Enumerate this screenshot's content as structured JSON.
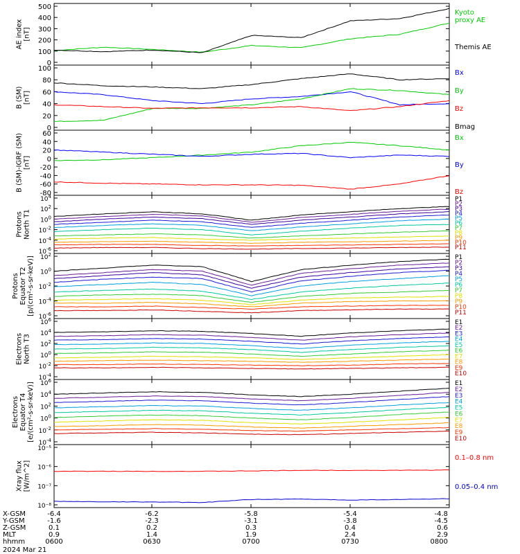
{
  "figure": {
    "date_label": "2024 Mar 21",
    "time_axis": {
      "rows": [
        {
          "label": "X-GSM",
          "values": [
            "-6.4",
            "-6.2",
            "-5.8",
            "-5.4",
            "-4.8"
          ]
        },
        {
          "label": "Y-GSM",
          "values": [
            "-1.6",
            "-2.3",
            "-3.1",
            "-3.8",
            "-4.5"
          ]
        },
        {
          "label": "Z-GSM",
          "values": [
            "0.1",
            "0.2",
            "0.3",
            "0.4",
            "0.6"
          ]
        },
        {
          "label": "MLT",
          "values": [
            "0.9",
            "1.4",
            "1.9",
            "2.4",
            "2.9"
          ]
        },
        {
          "label": "hhmm",
          "values": [
            "0600",
            "0630",
            "0700",
            "0730",
            "0800"
          ]
        }
      ]
    }
  },
  "chart_data": [
    {
      "type": "line",
      "scale": "linear",
      "ylabel": [
        "AE index",
        "[nT]"
      ],
      "ylim": [
        0,
        500
      ],
      "ticks": [
        0,
        100,
        200,
        300,
        400,
        500
      ],
      "x": [
        0,
        15,
        30,
        45,
        60,
        75,
        90,
        105,
        120
      ],
      "series": [
        {
          "name": "Kyoto proxy AE",
          "label_lines": [
            "Kyoto",
            "proxy AE"
          ],
          "color": "#00cc00",
          "values": [
            105,
            135,
            115,
            90,
            150,
            130,
            210,
            250,
            350
          ]
        },
        {
          "name": "Themis AE",
          "color": "#000000",
          "values": [
            110,
            95,
            110,
            85,
            240,
            220,
            370,
            390,
            480
          ]
        }
      ]
    },
    {
      "type": "line",
      "scale": "linear",
      "ylabel": [
        "B (SM)",
        "[nT]"
      ],
      "ylim": [
        0,
        100
      ],
      "ticks": [
        0,
        20,
        40,
        60,
        80,
        100
      ],
      "x": [
        0,
        15,
        30,
        45,
        60,
        75,
        90,
        105,
        120
      ],
      "series": [
        {
          "name": "Bx",
          "color": "#0000ff",
          "values": [
            60,
            55,
            45,
            40,
            48,
            52,
            60,
            38,
            40
          ]
        },
        {
          "name": "By",
          "color": "#00cc00",
          "values": [
            10,
            12,
            32,
            32,
            38,
            48,
            65,
            62,
            55
          ]
        },
        {
          "name": "Bz",
          "color": "#ff0000",
          "values": [
            38,
            35,
            32,
            33,
            33,
            35,
            28,
            35,
            45
          ]
        },
        {
          "name": "Bmag",
          "color": "#000000",
          "values": [
            75,
            70,
            68,
            65,
            72,
            82,
            90,
            80,
            82
          ]
        }
      ]
    },
    {
      "type": "line",
      "scale": "linear",
      "ylabel": [
        "B (SM)-IGRF (SM)",
        "[nT]"
      ],
      "ylim": [
        -80,
        60
      ],
      "ticks": [
        -80,
        -60,
        -40,
        -20,
        0,
        20,
        40,
        60
      ],
      "x": [
        0,
        15,
        30,
        45,
        60,
        75,
        90,
        105,
        120
      ],
      "series": [
        {
          "name": "Bx",
          "color": "#00cc00",
          "values": [
            -5,
            -3,
            2,
            8,
            15,
            30,
            38,
            30,
            20
          ]
        },
        {
          "name": "By",
          "color": "#0000ff",
          "values": [
            20,
            15,
            10,
            5,
            10,
            12,
            2,
            8,
            5
          ]
        },
        {
          "name": "Bz",
          "color": "#ff0000",
          "values": [
            -55,
            -58,
            -60,
            -62,
            -62,
            -63,
            -72,
            -60,
            -40
          ]
        }
      ]
    },
    {
      "type": "line",
      "scale": "log",
      "ylabel": [
        "Protons",
        "North T1"
      ],
      "ylim": [
        -6,
        4
      ],
      "ticks": [
        4,
        2,
        0,
        -2,
        -4,
        -6
      ],
      "x": [
        0,
        15,
        30,
        45,
        60,
        75,
        90,
        105,
        120
      ],
      "series": [
        {
          "name": "P1",
          "color": "#000000",
          "values": [
            0.5,
            1.0,
            1.4,
            1.0,
            -0.2,
            0.8,
            1.4,
            2.0,
            2.4
          ]
        },
        {
          "name": "P2",
          "color": "#6a1b9a",
          "values": [
            0.0,
            0.5,
            0.9,
            0.6,
            -0.6,
            0.3,
            0.9,
            1.5,
            1.9
          ]
        },
        {
          "name": "P3",
          "color": "#3f00a0",
          "values": [
            -0.5,
            0.0,
            0.4,
            0.1,
            -1.0,
            -0.2,
            0.4,
            1.0,
            1.4
          ]
        },
        {
          "name": "P4",
          "color": "#1b1bd8",
          "values": [
            -1.0,
            -0.6,
            -0.2,
            -0.5,
            -1.6,
            -0.8,
            -0.2,
            0.4,
            0.8
          ]
        },
        {
          "name": "P5",
          "color": "#00a0e0",
          "values": [
            -1.6,
            -1.2,
            -0.9,
            -1.2,
            -2.2,
            -1.5,
            -0.9,
            -0.3,
            0.0
          ]
        },
        {
          "name": "P6",
          "color": "#00c8a0",
          "values": [
            -2.4,
            -2.0,
            -1.7,
            -2.0,
            -3.0,
            -2.3,
            -1.7,
            -1.2,
            -1.0
          ]
        },
        {
          "name": "P7",
          "color": "#33cc33",
          "values": [
            -3.2,
            -3.0,
            -2.8,
            -3.0,
            -3.6,
            -3.2,
            -2.8,
            -2.5,
            -2.2
          ]
        },
        {
          "name": "P8",
          "color": "#e0e000",
          "values": [
            -3.8,
            -3.6,
            -3.5,
            -3.8,
            -4.0,
            -3.8,
            -3.6,
            -3.4,
            -3.2
          ]
        },
        {
          "name": "P9",
          "color": "#ff9900",
          "values": [
            -4.4,
            -4.3,
            -4.2,
            -4.4,
            -4.6,
            -4.4,
            -4.3,
            -4.2,
            -4.0
          ]
        },
        {
          "name": "P10",
          "color": "#ff3300",
          "values": [
            -4.9,
            -4.8,
            -4.8,
            -5.0,
            -5.1,
            -5.0,
            -4.9,
            -4.8,
            -4.7
          ]
        },
        {
          "name": "P11",
          "color": "#cc0000",
          "values": [
            -5.5,
            -5.4,
            -5.4,
            -5.6,
            -5.7,
            -5.6,
            -5.5,
            -5.4,
            -5.3
          ]
        }
      ]
    },
    {
      "type": "line",
      "scale": "log",
      "ylabel": [
        "Protons",
        "Equator T2",
        "[p/(cm²-s-sr-keV)]"
      ],
      "ylim": [
        -6,
        2
      ],
      "ticks": [
        2,
        0,
        -2,
        -4,
        -6
      ],
      "x": [
        0,
        15,
        30,
        45,
        60,
        75,
        90,
        105,
        120
      ],
      "series": [
        {
          "name": "P1",
          "color": "#000000",
          "values": [
            0.0,
            0.4,
            0.8,
            0.6,
            -1.4,
            0.2,
            0.8,
            1.3,
            1.6
          ]
        },
        {
          "name": "P2",
          "color": "#6a1b9a",
          "values": [
            -0.6,
            -0.2,
            0.2,
            0.0,
            -1.9,
            -0.3,
            0.3,
            0.8,
            1.1
          ]
        },
        {
          "name": "P3",
          "color": "#3f00a0",
          "values": [
            -1.0,
            -0.6,
            -0.2,
            -0.5,
            -2.3,
            -0.8,
            -0.2,
            0.3,
            0.6
          ]
        },
        {
          "name": "P4",
          "color": "#1b1bd8",
          "values": [
            -1.5,
            -1.1,
            -0.8,
            -1.0,
            -2.8,
            -1.3,
            -0.7,
            -0.2,
            0.1
          ]
        },
        {
          "name": "P5",
          "color": "#00a0e0",
          "values": [
            -2.1,
            -1.8,
            -1.5,
            -1.8,
            -3.3,
            -2.0,
            -1.4,
            -1.0,
            -0.6
          ]
        },
        {
          "name": "P6",
          "color": "#00c8a0",
          "values": [
            -2.8,
            -2.6,
            -2.4,
            -2.7,
            -3.8,
            -2.8,
            -2.3,
            -1.9,
            -1.6
          ]
        },
        {
          "name": "P7",
          "color": "#33cc33",
          "values": [
            -3.4,
            -3.2,
            -3.1,
            -3.3,
            -4.2,
            -3.4,
            -3.0,
            -2.8,
            -2.6
          ]
        },
        {
          "name": "P8",
          "color": "#e0e000",
          "values": [
            -3.9,
            -3.8,
            -3.7,
            -3.9,
            -4.5,
            -3.9,
            -3.6,
            -3.5,
            -3.4
          ]
        },
        {
          "name": "P9",
          "color": "#ff9900",
          "values": [
            -4.3,
            -4.3,
            -4.2,
            -4.4,
            -4.8,
            -4.3,
            -4.1,
            -4.0,
            -4.0
          ]
        },
        {
          "name": "P10",
          "color": "#ff3300",
          "values": [
            -4.8,
            -4.8,
            -4.7,
            -4.9,
            -5.1,
            -4.8,
            -4.7,
            -4.6,
            -4.6
          ]
        },
        {
          "name": "P11",
          "color": "#cc0000",
          "values": [
            -5.3,
            -5.3,
            -5.2,
            -5.4,
            -5.6,
            -5.3,
            -5.2,
            -5.1,
            -5.1
          ]
        }
      ]
    },
    {
      "type": "line",
      "scale": "log",
      "ylabel": [
        "Electrons",
        "North T3"
      ],
      "ylim": [
        -4,
        6
      ],
      "ticks": [
        6,
        4,
        2,
        0,
        -2,
        -4
      ],
      "x": [
        0,
        15,
        30,
        45,
        60,
        75,
        90,
        105,
        120
      ],
      "series": [
        {
          "name": "E1",
          "color": "#000000",
          "values": [
            4.0,
            4.1,
            4.3,
            4.2,
            3.8,
            3.3,
            3.9,
            4.3,
            4.6
          ]
        },
        {
          "name": "E2",
          "color": "#6a1b9a",
          "values": [
            3.3,
            3.4,
            3.6,
            3.5,
            3.1,
            2.6,
            3.2,
            3.6,
            3.9
          ]
        },
        {
          "name": "E3",
          "color": "#1b1bd8",
          "values": [
            2.6,
            2.7,
            2.9,
            2.8,
            2.4,
            1.9,
            2.5,
            2.9,
            3.2
          ]
        },
        {
          "name": "E4",
          "color": "#00a0e0",
          "values": [
            1.8,
            1.9,
            2.1,
            2.0,
            1.6,
            1.1,
            1.7,
            2.1,
            2.4
          ]
        },
        {
          "name": "E5",
          "color": "#00c8a0",
          "values": [
            1.0,
            1.1,
            1.3,
            1.2,
            0.9,
            0.4,
            0.9,
            1.3,
            1.6
          ]
        },
        {
          "name": "E6",
          "color": "#33cc33",
          "values": [
            0.2,
            0.3,
            0.5,
            0.4,
            0.1,
            -0.3,
            0.1,
            0.5,
            0.8
          ]
        },
        {
          "name": "E7",
          "color": "#e0e000",
          "values": [
            -0.6,
            -0.5,
            -0.3,
            -0.4,
            -0.6,
            -0.9,
            -0.6,
            -0.3,
            0.0
          ]
        },
        {
          "name": "E8",
          "color": "#ff9900",
          "values": [
            -1.2,
            -1.1,
            -1.0,
            -1.1,
            -1.2,
            -1.4,
            -1.2,
            -1.0,
            -0.8
          ]
        },
        {
          "name": "E9",
          "color": "#ff3300",
          "values": [
            -1.8,
            -1.8,
            -1.7,
            -1.8,
            -1.9,
            -2.0,
            -1.9,
            -1.7,
            -1.6
          ]
        },
        {
          "name": "E10",
          "color": "#cc0000",
          "values": [
            -2.4,
            -2.4,
            -2.3,
            -2.4,
            -2.5,
            -2.6,
            -2.5,
            -2.4,
            -2.3
          ]
        }
      ]
    },
    {
      "type": "line",
      "scale": "log",
      "ylabel": [
        "Electrons",
        "Equator T4",
        "[e/(cm²-s-sr-keV)]"
      ],
      "ylim": [
        -4,
        6
      ],
      "ticks": [
        6,
        4,
        2,
        0,
        -2,
        -4
      ],
      "x": [
        0,
        15,
        30,
        45,
        60,
        75,
        90,
        105,
        120
      ],
      "series": [
        {
          "name": "E1",
          "color": "#000000",
          "values": [
            4.0,
            4.2,
            4.4,
            4.3,
            3.9,
            3.6,
            4.0,
            4.5,
            5.0
          ]
        },
        {
          "name": "E2",
          "color": "#6a1b9a",
          "values": [
            3.3,
            3.5,
            3.7,
            3.6,
            3.2,
            2.9,
            3.3,
            3.8,
            4.3
          ]
        },
        {
          "name": "E3",
          "color": "#1b1bd8",
          "values": [
            2.6,
            2.8,
            3.0,
            2.9,
            2.5,
            2.2,
            2.6,
            3.1,
            3.6
          ]
        },
        {
          "name": "E4",
          "color": "#00a0e0",
          "values": [
            1.7,
            1.9,
            2.1,
            2.0,
            1.6,
            1.3,
            1.7,
            2.2,
            2.6
          ]
        },
        {
          "name": "E5",
          "color": "#00c8a0",
          "values": [
            0.9,
            1.1,
            1.3,
            1.2,
            0.8,
            0.5,
            0.9,
            1.4,
            1.8
          ]
        },
        {
          "name": "E6",
          "color": "#33cc33",
          "values": [
            0.1,
            0.3,
            0.5,
            0.4,
            0.0,
            -0.3,
            0.1,
            0.6,
            1.0
          ]
        },
        {
          "name": "E7",
          "color": "#e0e000",
          "values": [
            -0.7,
            -0.5,
            -0.3,
            -0.4,
            -0.8,
            -1.0,
            -0.7,
            -0.3,
            0.1
          ]
        },
        {
          "name": "E8",
          "color": "#ff9900",
          "values": [
            -1.4,
            -1.3,
            -1.1,
            -1.2,
            -1.5,
            -1.7,
            -1.4,
            -1.1,
            -0.8
          ]
        },
        {
          "name": "E9",
          "color": "#ff3300",
          "values": [
            -2.0,
            -1.9,
            -1.8,
            -1.9,
            -2.1,
            -2.2,
            -2.0,
            -1.8,
            -1.6
          ]
        },
        {
          "name": "E10",
          "color": "#cc0000",
          "values": [
            -2.6,
            -2.5,
            -2.4,
            -2.5,
            -2.7,
            -2.8,
            -2.6,
            -2.4,
            -2.2
          ]
        }
      ]
    },
    {
      "type": "line",
      "scale": "log",
      "ylabel": [
        "Xray flux",
        "[W/m^2]"
      ],
      "ylim": [
        -8,
        -5
      ],
      "ticks": [
        -5,
        -6,
        -7,
        -8
      ],
      "tick_labels": [
        "10⁻⁵",
        "10⁻⁶",
        "10⁻⁷",
        "10⁻⁸"
      ],
      "x": [
        0,
        15,
        30,
        45,
        60,
        75,
        90,
        105,
        120
      ],
      "series": [
        {
          "name": "0.1–0.8 nm",
          "color": "#ff0000",
          "values": [
            -6.25,
            -6.25,
            -6.25,
            -6.25,
            -6.23,
            -6.2,
            -6.2,
            -6.2,
            -6.18
          ]
        },
        {
          "name": "0.05–0.4 nm",
          "color": "#0000cc",
          "values": [
            -7.82,
            -7.84,
            -7.85,
            -7.88,
            -7.72,
            -7.7,
            -7.75,
            -7.72,
            -7.68
          ]
        }
      ]
    }
  ]
}
